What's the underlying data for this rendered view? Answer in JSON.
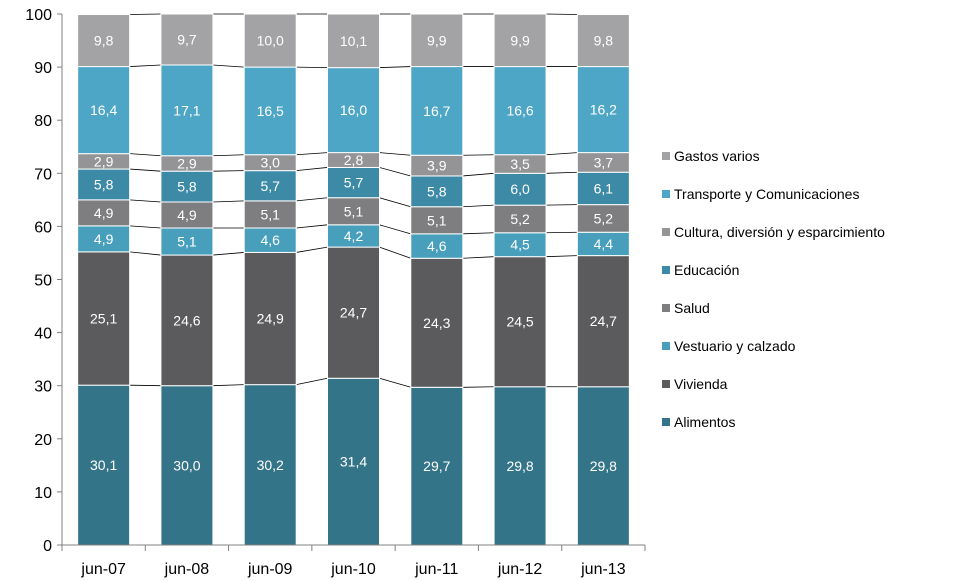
{
  "chart_data": {
    "type": "bar",
    "stacked": true,
    "categories": [
      "jun-07",
      "jun-08",
      "jun-09",
      "jun-10",
      "jun-11",
      "jun-12",
      "jun-13"
    ],
    "series": [
      {
        "name": "Alimentos",
        "color": "#347489",
        "values": [
          30.1,
          30.0,
          30.2,
          31.4,
          29.7,
          29.8,
          29.8
        ],
        "labels": [
          "30,1",
          "30,0",
          "30,2",
          "31,4",
          "29,7",
          "29,8",
          "29,8"
        ]
      },
      {
        "name": "Vivienda",
        "color": "#5b5b5d",
        "values": [
          25.1,
          24.6,
          24.9,
          24.7,
          24.3,
          24.5,
          24.7
        ],
        "labels": [
          "25,1",
          "24,6",
          "24,9",
          "24,7",
          "24,3",
          "24,5",
          "24,7"
        ]
      },
      {
        "name": "Vestuario y calzado",
        "color": "#489fbc",
        "values": [
          4.9,
          5.1,
          4.6,
          4.2,
          4.6,
          4.5,
          4.4
        ],
        "labels": [
          "4,9",
          "5,1",
          "4,6",
          "4,2",
          "4,6",
          "4,5",
          "4,4"
        ]
      },
      {
        "name": "Salud",
        "color": "#7e7e80",
        "values": [
          4.9,
          4.9,
          5.1,
          5.1,
          5.1,
          5.2,
          5.2
        ],
        "labels": [
          "4,9",
          "4,9",
          "5,1",
          "5,1",
          "5,1",
          "5,2",
          "5,2"
        ]
      },
      {
        "name": "Educación",
        "color": "#3c8aa6",
        "values": [
          5.8,
          5.8,
          5.7,
          5.7,
          5.8,
          6.0,
          6.1
        ],
        "labels": [
          "5,8",
          "5,8",
          "5,7",
          "5,7",
          "5,8",
          "6,0",
          "6,1"
        ]
      },
      {
        "name": "Cultura, diversión y esparcimiento",
        "color": "#949496",
        "values": [
          2.9,
          2.9,
          3.0,
          2.8,
          3.9,
          3.5,
          3.7
        ],
        "labels": [
          "2,9",
          "2,9",
          "3,0",
          "2,8",
          "3,9",
          "3,5",
          "3,7"
        ]
      },
      {
        "name": "Transporte y Comunicaciones",
        "color": "#4ea6c6",
        "values": [
          16.4,
          17.1,
          16.5,
          16.0,
          16.7,
          16.6,
          16.2
        ],
        "labels": [
          "16,4",
          "17,1",
          "16,5",
          "16,0",
          "16,7",
          "16,6",
          "16,2"
        ]
      },
      {
        "name": "Gastos varios",
        "color": "#a3a3a5",
        "values": [
          9.8,
          9.7,
          10.0,
          10.1,
          9.9,
          9.9,
          9.8
        ],
        "labels": [
          "9,8",
          "9,7",
          "10,0",
          "10,1",
          "9,9",
          "9,9",
          "9,8"
        ]
      }
    ],
    "legend_order": [
      "Gastos varios",
      "Transporte y Comunicaciones",
      "Cultura, diversión y esparcimiento",
      "Educación",
      "Salud",
      "Vestuario y calzado",
      "Vivienda",
      "Alimentos"
    ],
    "y_ticks": [
      "0",
      "10",
      "20",
      "30",
      "40",
      "50",
      "60",
      "70",
      "80",
      "90",
      "100"
    ],
    "ylim": [
      0,
      100
    ],
    "grid": false,
    "series_lines": true,
    "legend_position": "right"
  }
}
